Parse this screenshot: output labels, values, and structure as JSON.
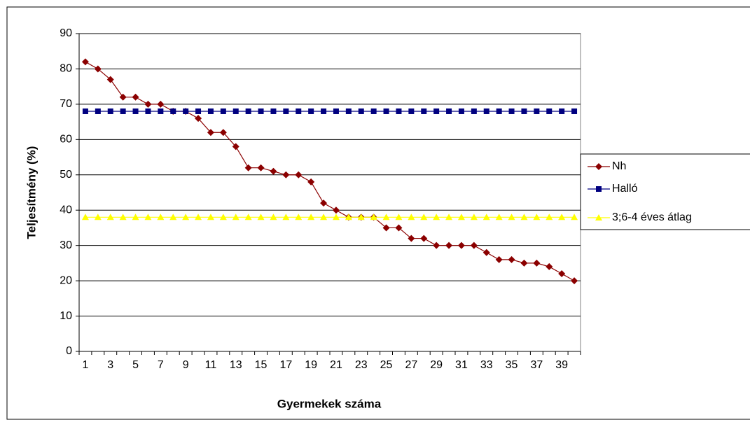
{
  "chart_data": {
    "type": "line",
    "xlabel": "Gyermekek száma",
    "ylabel": "Teljesítmény (%)",
    "categories": [
      1,
      null,
      3,
      null,
      5,
      null,
      7,
      null,
      9,
      null,
      11,
      null,
      13,
      null,
      15,
      null,
      17,
      null,
      19,
      null,
      21,
      null,
      23,
      null,
      25,
      null,
      27,
      null,
      29,
      null,
      31,
      null,
      33,
      null,
      35,
      null,
      37,
      null,
      39,
      null
    ],
    "series": [
      {
        "name": "Nh",
        "color": "#8b0000",
        "marker": "diamond",
        "line_color": "#8b0000",
        "values": [
          82,
          80,
          77,
          72,
          72,
          70,
          70,
          68,
          68,
          66,
          62,
          62,
          58,
          52,
          52,
          51,
          50,
          50,
          48,
          42,
          40,
          38,
          38,
          38,
          35,
          35,
          32,
          32,
          30,
          30,
          30,
          30,
          28,
          26,
          26,
          25,
          25,
          24,
          22,
          20
        ]
      },
      {
        "name": "Halló",
        "color": "#000080",
        "marker": "square",
        "line_color": "#000080",
        "values": [
          68,
          68,
          68,
          68,
          68,
          68,
          68,
          68,
          68,
          68,
          68,
          68,
          68,
          68,
          68,
          68,
          68,
          68,
          68,
          68,
          68,
          68,
          68,
          68,
          68,
          68,
          68,
          68,
          68,
          68,
          68,
          68,
          68,
          68,
          68,
          68,
          68,
          68,
          68,
          68
        ]
      },
      {
        "name": "3;6-4 éves átlag",
        "color": "#ffff00",
        "marker": "triangle",
        "line_color": "#ffff00",
        "values": [
          38,
          38,
          38,
          38,
          38,
          38,
          38,
          38,
          38,
          38,
          38,
          38,
          38,
          38,
          38,
          38,
          38,
          38,
          38,
          38,
          38,
          38,
          38,
          38,
          38,
          38,
          38,
          38,
          38,
          38,
          38,
          38,
          38,
          38,
          38,
          38,
          38,
          38,
          38,
          38
        ]
      }
    ],
    "ylim": [
      0,
      90
    ],
    "yticks": [
      0,
      10,
      20,
      30,
      40,
      50,
      60,
      70,
      80,
      90
    ],
    "grid": true,
    "legend": "right"
  }
}
